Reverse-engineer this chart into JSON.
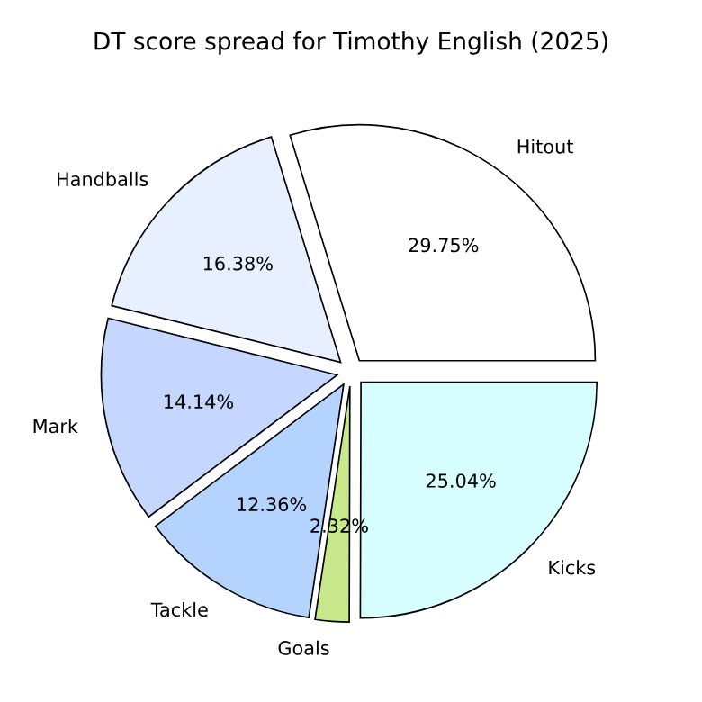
{
  "chart_data": {
    "type": "pie",
    "title": "DT score spread for Timothy English (2025)",
    "categories": [
      "Hitout",
      "Handballs",
      "Mark",
      "Tackle",
      "Goals",
      "Kicks"
    ],
    "values": [
      29.75,
      16.38,
      14.14,
      12.36,
      2.32,
      25.04
    ],
    "value_labels": [
      "29.75%",
      "16.38%",
      "14.14%",
      "12.36%",
      "2.32%",
      "25.04%"
    ],
    "colors": [
      "#ffffff",
      "#e8efff",
      "#c5d7ff",
      "#b4d3ff",
      "#c9e88b",
      "#d8ffff"
    ],
    "legend": false
  }
}
